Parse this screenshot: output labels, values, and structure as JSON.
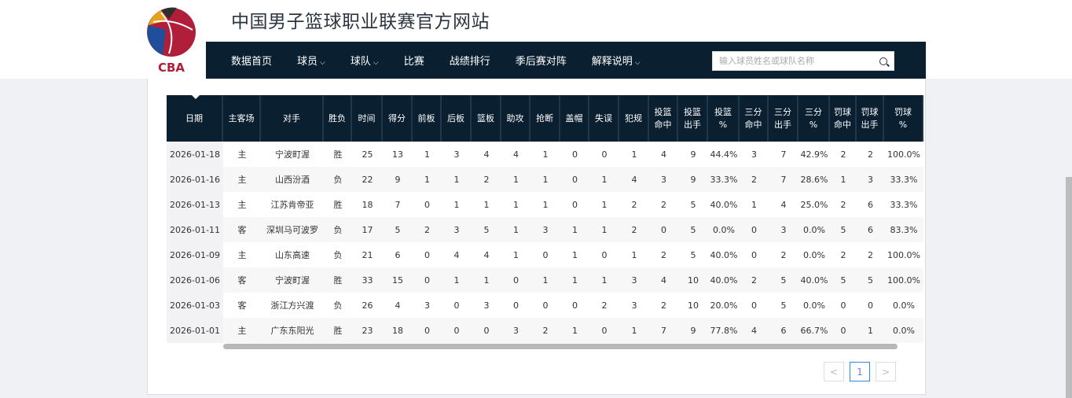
{
  "header": {
    "site_title": "中国男子篮球职业联赛官方网站",
    "logo_text": "CBA"
  },
  "nav": {
    "items": [
      {
        "label": "数据首页",
        "dropdown": false
      },
      {
        "label": "球员",
        "dropdown": true
      },
      {
        "label": "球队",
        "dropdown": true
      },
      {
        "label": "比赛",
        "dropdown": false
      },
      {
        "label": "战绩排行",
        "dropdown": false
      },
      {
        "label": "季后赛对阵",
        "dropdown": false
      },
      {
        "label": "解释说明",
        "dropdown": true
      }
    ],
    "search_placeholder": "输入球员姓名或球队名称",
    "search_value": ""
  },
  "table": {
    "columns": [
      [
        "日期"
      ],
      [
        "主客场"
      ],
      [
        "对手"
      ],
      [
        "胜负"
      ],
      [
        "时间"
      ],
      [
        "得分"
      ],
      [
        "前板"
      ],
      [
        "后板"
      ],
      [
        "篮板"
      ],
      [
        "助攻"
      ],
      [
        "抢断"
      ],
      [
        "盖帽"
      ],
      [
        "失误"
      ],
      [
        "犯规"
      ],
      [
        "投篮",
        "命中"
      ],
      [
        "投篮",
        "出手"
      ],
      [
        "投篮",
        "%"
      ],
      [
        "三分",
        "命中"
      ],
      [
        "三分",
        "出手"
      ],
      [
        "三分",
        "%"
      ],
      [
        "罚球",
        "命中"
      ],
      [
        "罚球",
        "出手"
      ],
      [
        "罚球",
        "%"
      ]
    ],
    "rows": [
      [
        "2026-01-18",
        "主",
        "宁波町渥",
        "胜",
        "25",
        "13",
        "1",
        "3",
        "4",
        "4",
        "1",
        "0",
        "0",
        "1",
        "4",
        "9",
        "44.4%",
        "3",
        "7",
        "42.9%",
        "2",
        "2",
        "100.0%"
      ],
      [
        "2026-01-16",
        "主",
        "山西汾酒",
        "负",
        "22",
        "9",
        "1",
        "1",
        "2",
        "1",
        "1",
        "0",
        "1",
        "4",
        "3",
        "9",
        "33.3%",
        "2",
        "7",
        "28.6%",
        "1",
        "3",
        "33.3%"
      ],
      [
        "2026-01-13",
        "主",
        "江苏肯帝亚",
        "胜",
        "18",
        "7",
        "0",
        "1",
        "1",
        "1",
        "1",
        "0",
        "1",
        "2",
        "2",
        "5",
        "40.0%",
        "1",
        "4",
        "25.0%",
        "2",
        "6",
        "33.3%"
      ],
      [
        "2026-01-11",
        "客",
        "深圳马可波罗",
        "负",
        "17",
        "5",
        "2",
        "3",
        "5",
        "1",
        "3",
        "1",
        "1",
        "2",
        "0",
        "5",
        "0.0%",
        "0",
        "3",
        "0.0%",
        "5",
        "6",
        "83.3%"
      ],
      [
        "2026-01-09",
        "主",
        "山东高速",
        "负",
        "21",
        "6",
        "0",
        "4",
        "4",
        "1",
        "0",
        "1",
        "0",
        "1",
        "2",
        "5",
        "40.0%",
        "0",
        "2",
        "0.0%",
        "2",
        "2",
        "100.0%"
      ],
      [
        "2026-01-06",
        "客",
        "宁波町渥",
        "胜",
        "33",
        "15",
        "0",
        "1",
        "1",
        "0",
        "1",
        "1",
        "1",
        "3",
        "4",
        "10",
        "40.0%",
        "2",
        "5",
        "40.0%",
        "5",
        "5",
        "100.0%"
      ],
      [
        "2026-01-03",
        "客",
        "浙江方兴渡",
        "负",
        "26",
        "4",
        "3",
        "0",
        "3",
        "0",
        "0",
        "0",
        "2",
        "3",
        "2",
        "10",
        "20.0%",
        "0",
        "5",
        "0.0%",
        "0",
        "0",
        "0.0%"
      ],
      [
        "2026-01-01",
        "主",
        "广东东阳光",
        "胜",
        "23",
        "18",
        "0",
        "0",
        "0",
        "3",
        "2",
        "1",
        "0",
        "1",
        "7",
        "9",
        "77.8%",
        "4",
        "6",
        "66.7%",
        "0",
        "1",
        "0.0%"
      ]
    ]
  },
  "pagination": {
    "prev": "<",
    "current": "1",
    "next": ">"
  },
  "colors": {
    "nav_bg": "#0a1f30",
    "page_bg": "#f0f1f5",
    "accent": "#2a8cf0"
  }
}
